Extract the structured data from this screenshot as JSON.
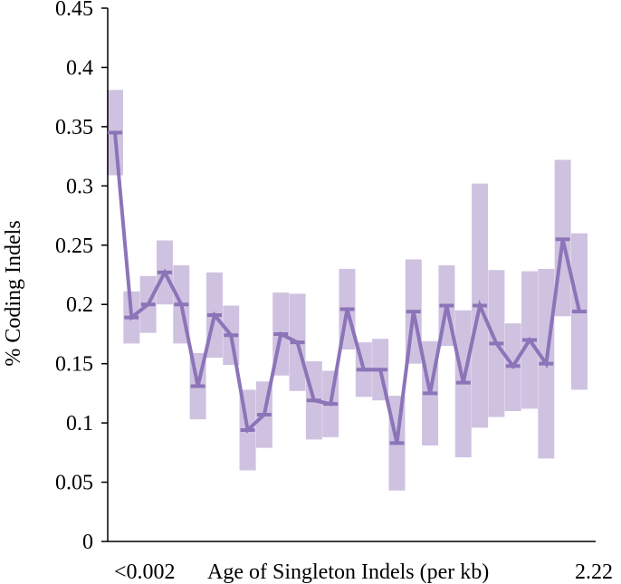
{
  "chart_data": {
    "type": "line",
    "ylabel": "% Coding Indels",
    "xlabel": "Age of Singleton Indels (per kb)",
    "x_start_label": "<0.002",
    "x_end_label": "2.22",
    "ylim": [
      0,
      0.45
    ],
    "yticks": [
      "0",
      "0.05",
      "0.1",
      "0.15",
      "0.2",
      "0.25",
      "0.3",
      "0.35",
      "0.4",
      "0.45"
    ],
    "grid": false,
    "line_color": "#8c74b8",
    "band_color": "#cfc2e1",
    "series": [
      {
        "values": [
          0.345,
          0.189,
          0.2,
          0.227,
          0.2,
          0.131,
          0.191,
          0.174,
          0.094,
          0.107,
          0.175,
          0.168,
          0.119,
          0.116,
          0.196,
          0.145,
          0.145,
          0.083,
          0.194,
          0.125,
          0.199,
          0.134,
          0.199,
          0.167,
          0.148,
          0.17,
          0.15,
          0.255,
          0.194
        ],
        "lower": [
          0.309,
          0.167,
          0.176,
          0.2,
          0.167,
          0.103,
          0.155,
          0.149,
          0.06,
          0.079,
          0.14,
          0.127,
          0.086,
          0.088,
          0.162,
          0.122,
          0.119,
          0.043,
          0.15,
          0.081,
          0.165,
          0.071,
          0.096,
          0.105,
          0.11,
          0.112,
          0.07,
          0.19,
          0.128
        ],
        "upper": [
          0.381,
          0.211,
          0.224,
          0.254,
          0.233,
          0.159,
          0.227,
          0.199,
          0.128,
          0.135,
          0.21,
          0.209,
          0.152,
          0.144,
          0.23,
          0.168,
          0.171,
          0.123,
          0.238,
          0.169,
          0.233,
          0.195,
          0.302,
          0.229,
          0.184,
          0.228,
          0.23,
          0.322,
          0.26
        ]
      }
    ]
  }
}
